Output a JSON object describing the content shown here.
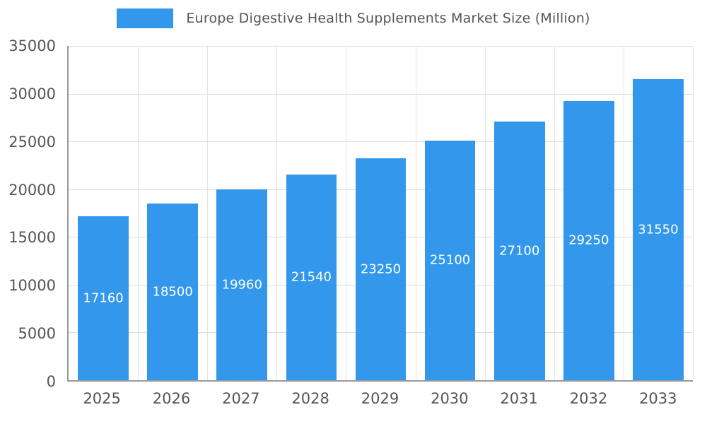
{
  "chart_data": {
    "type": "bar",
    "title": "Europe Digestive Health Supplements Market Size (Million)",
    "categories": [
      "2025",
      "2026",
      "2027",
      "2028",
      "2029",
      "2030",
      "2031",
      "2032",
      "2033"
    ],
    "values": [
      17160,
      18500,
      19960,
      21540,
      23250,
      25100,
      27100,
      29250,
      31550
    ],
    "xlabel": "",
    "ylabel": "",
    "ylim": [
      0,
      35000
    ],
    "yticks": [
      0,
      5000,
      10000,
      15000,
      20000,
      25000,
      30000,
      35000
    ],
    "grid": true,
    "legend_position": "top",
    "bar_color": "#3398EC",
    "value_label_color": "#FFFFFF",
    "axis_text_color": "#555555"
  }
}
